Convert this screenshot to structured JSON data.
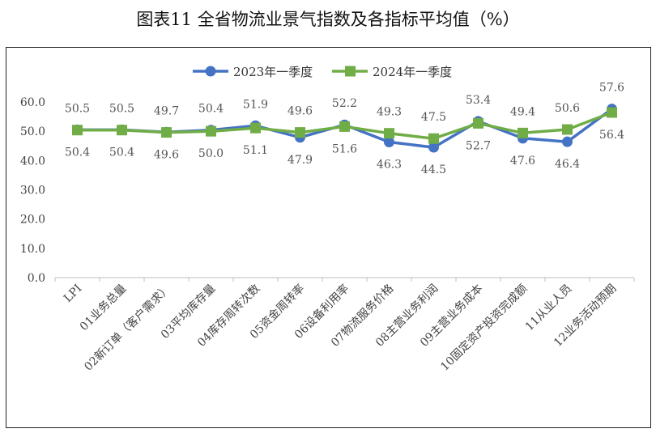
{
  "title": "图表11  全省物流业景气指数及各指标平均值（%）",
  "chart_data": {
    "type": "line",
    "title": "图表11  全省物流业景气指数及各指标平均值（%）",
    "categories": [
      "LPI",
      "01业务总量",
      "02新订单（客户需求）",
      "03平均库存量",
      "04库存周转次数",
      "05资金周转率",
      "06设备利用率",
      "07物流服务价格",
      "08主营业务利润",
      "09主营业务成本",
      "10固定资产投资完成额",
      "11从业人员",
      "12业务活动预期"
    ],
    "ylim": [
      0,
      60
    ],
    "yticks": [
      "0.0",
      "10.0",
      "20.0",
      "30.0",
      "40.0",
      "50.0",
      "60.0"
    ],
    "legend_position": "top",
    "grid": false,
    "series": [
      {
        "name": "2023年一季度",
        "color": "#4472C4",
        "marker": "circle",
        "values": [
          50.5,
          50.5,
          49.7,
          50.4,
          51.9,
          47.9,
          52.2,
          46.3,
          44.5,
          53.4,
          47.6,
          46.4,
          57.6
        ],
        "labels": [
          "50.5",
          "50.5",
          "49.7",
          "50.4",
          "51.9",
          "47.9",
          "52.2",
          "46.3",
          "44.5",
          "53.4",
          "47.6",
          "46.4",
          "57.6"
        ]
      },
      {
        "name": "2024年一季度",
        "color": "#70AD47",
        "marker": "square",
        "values": [
          50.4,
          50.4,
          49.6,
          50.0,
          51.1,
          49.6,
          51.6,
          49.3,
          47.5,
          52.7,
          49.4,
          50.6,
          56.4
        ],
        "labels": [
          "50.4",
          "50.4",
          "49.6",
          "50.0",
          "51.1",
          "49.6",
          "51.6",
          "49.3",
          "47.5",
          "52.7",
          "49.4",
          "50.6",
          "56.4"
        ]
      }
    ]
  }
}
